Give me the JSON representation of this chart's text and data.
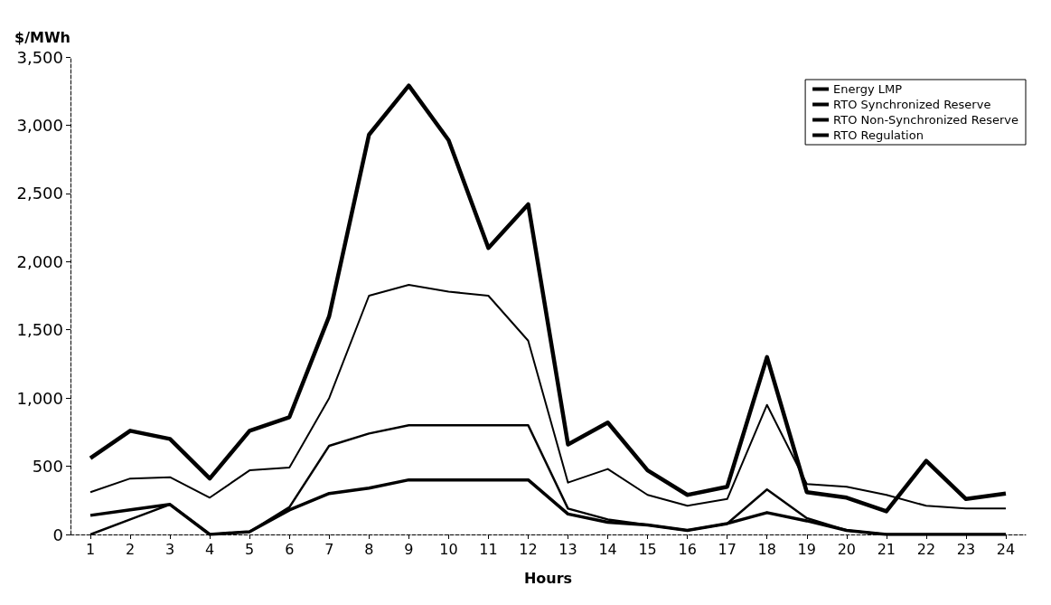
{
  "chart_data": {
    "type": "line",
    "ylabel": "$/MWh",
    "xlabel": "Hours",
    "x": [
      1,
      2,
      3,
      4,
      5,
      6,
      7,
      8,
      9,
      10,
      11,
      12,
      13,
      14,
      15,
      16,
      17,
      18,
      19,
      20,
      21,
      22,
      23,
      24
    ],
    "xlim": [
      0.5,
      24.5
    ],
    "xticks": [
      1,
      2,
      3,
      4,
      5,
      6,
      7,
      8,
      9,
      10,
      11,
      12,
      13,
      14,
      15,
      16,
      17,
      18,
      19,
      20,
      21,
      22,
      23,
      24
    ],
    "series": [
      {
        "name": "Energy LMP",
        "color": "#000000",
        "values": [
          310,
          410,
          420,
          270,
          470,
          490,
          1000,
          1750,
          1830,
          1780,
          1750,
          1420,
          380,
          480,
          290,
          210,
          260,
          950,
          370,
          350,
          290,
          210,
          190,
          190
        ]
      },
      {
        "name": "RTO Synchronized Reserve",
        "color": "#000000",
        "values": [
          0,
          110,
          220,
          0,
          20,
          200,
          650,
          740,
          800,
          800,
          800,
          800,
          190,
          110,
          70,
          30,
          80,
          330,
          120,
          30,
          0,
          0,
          0,
          0
        ]
      },
      {
        "name": "RTO Non-Synchronized Reserve",
        "color": "#000000",
        "values": [
          140,
          180,
          220,
          0,
          20,
          180,
          300,
          340,
          400,
          400,
          400,
          400,
          150,
          90,
          70,
          30,
          80,
          160,
          100,
          30,
          0,
          0,
          0,
          0
        ]
      },
      {
        "name": "RTO Regulation",
        "color": "#000000",
        "values": [
          560,
          760,
          700,
          410,
          760,
          860,
          1600,
          2930,
          3290,
          2890,
          2100,
          2420,
          660,
          820,
          470,
          290,
          350,
          1300,
          310,
          270,
          170,
          540,
          260,
          300
        ]
      }
    ],
    "ylim": [
      0,
      3500
    ],
    "yticks": [
      0,
      500,
      {
        "value": 1000,
        "label": "1,000"
      },
      {
        "value": 1500,
        "label": "1,500"
      },
      {
        "value": 2000,
        "label": "2,000"
      },
      {
        "value": 2500,
        "label": "2,500"
      },
      {
        "value": 3000,
        "label": "3,000"
      },
      {
        "value": 3500,
        "label": "3,500"
      }
    ],
    "grid": false,
    "legend": "top right",
    "marker": "none",
    "line_style": "solid"
  }
}
